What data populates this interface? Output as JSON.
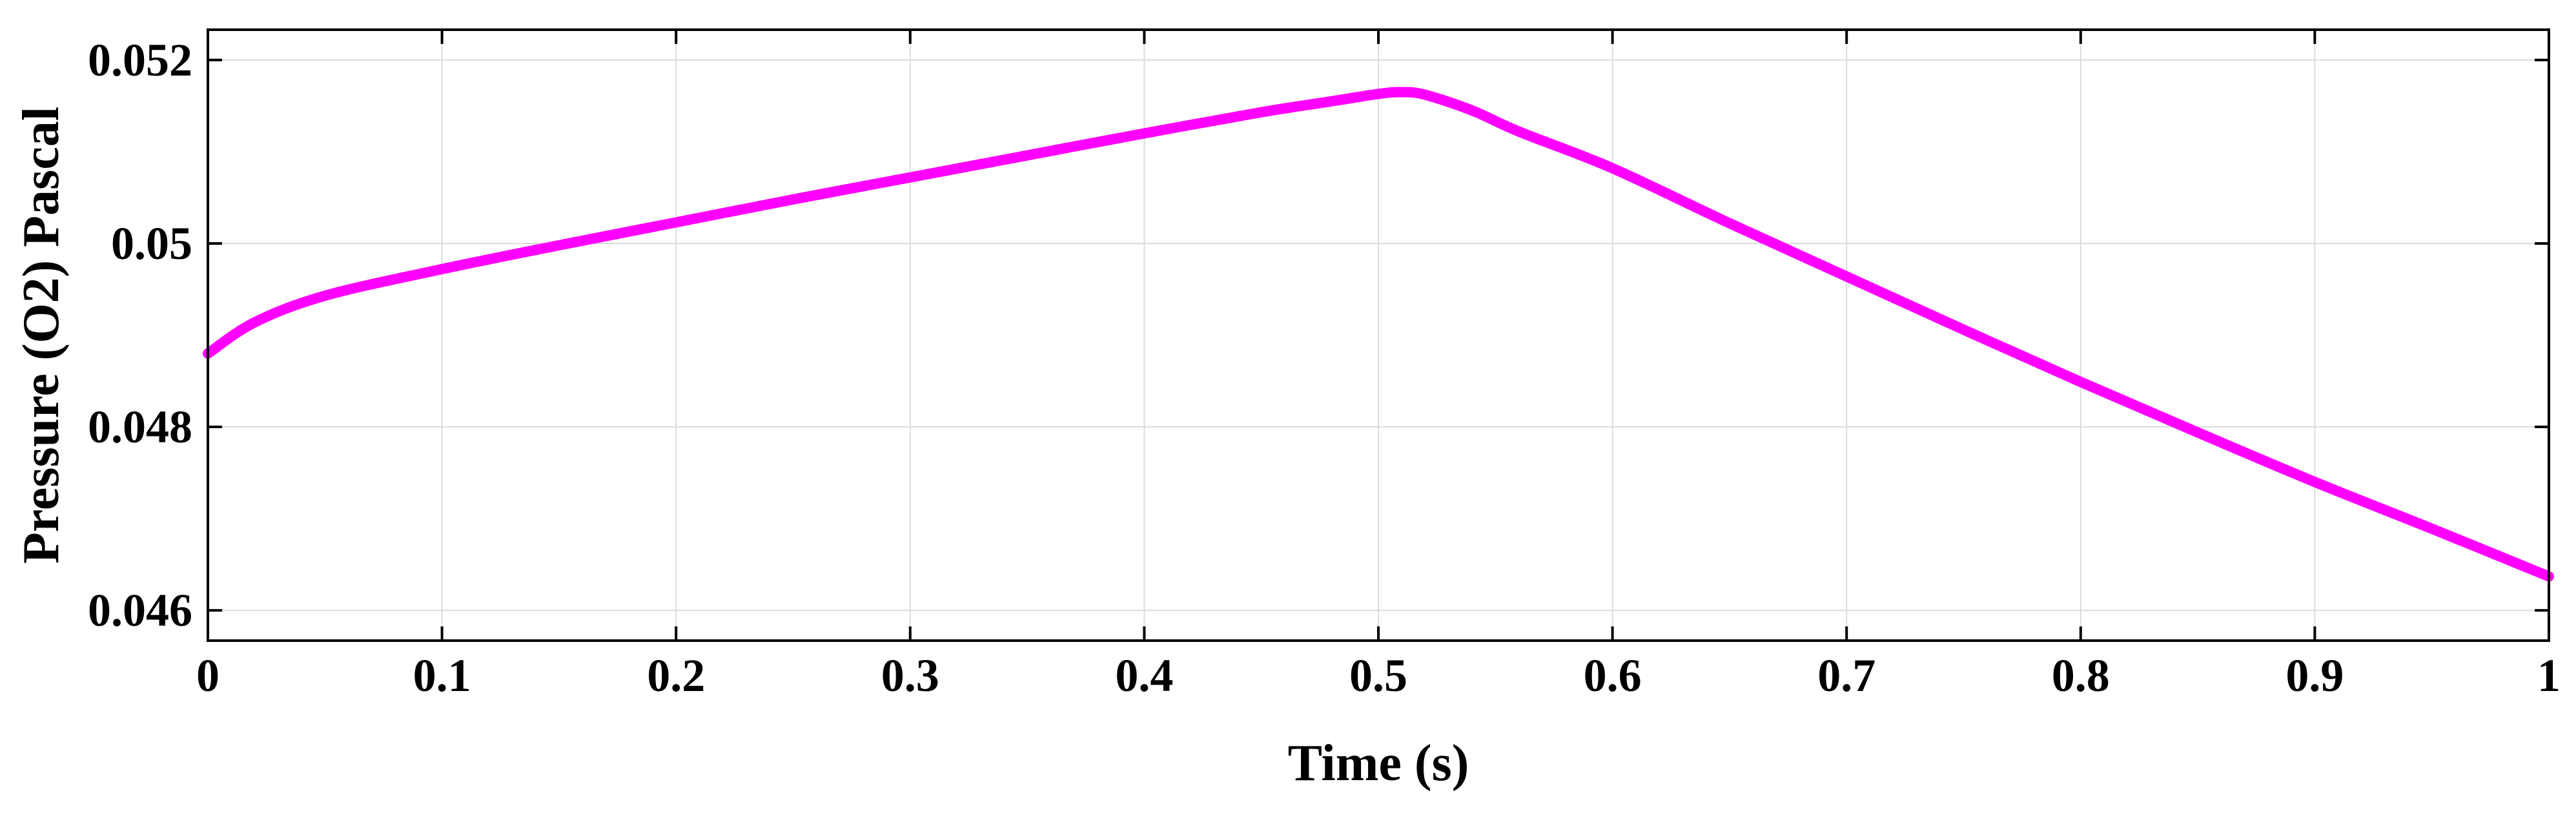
{
  "chart_data": {
    "type": "line",
    "title": "",
    "xlabel": "Time (s)",
    "ylabel": "Pressure (O2) Pascal",
    "xlim": [
      0,
      1
    ],
    "ylim": [
      0.04567,
      0.05233
    ],
    "x_ticks": [
      0,
      0.1,
      0.2,
      0.3,
      0.4,
      0.5,
      0.6,
      0.7,
      0.8,
      0.9,
      1
    ],
    "x_tick_labels": [
      "0",
      "0.1",
      "0.2",
      "0.3",
      "0.4",
      "0.5",
      "0.6",
      "0.7",
      "0.8",
      "0.9",
      "1"
    ],
    "y_ticks": [
      0.046,
      0.048,
      0.05,
      0.052
    ],
    "y_tick_labels": [
      "0.046",
      "0.048",
      "0.05",
      "0.052"
    ],
    "grid": true,
    "legend": "none",
    "series": [
      {
        "color": "#ff00ff",
        "x": [
          0,
          0.02,
          0.05,
          0.1,
          0.15,
          0.2,
          0.25,
          0.3,
          0.35,
          0.4,
          0.45,
          0.48,
          0.5,
          0.51,
          0.52,
          0.54,
          0.56,
          0.6,
          0.65,
          0.7,
          0.75,
          0.8,
          0.85,
          0.9,
          0.95,
          1.0
        ],
        "y": [
          0.0488,
          0.04914,
          0.04943,
          0.04972,
          0.04998,
          0.05023,
          0.05048,
          0.05072,
          0.05096,
          0.0512,
          0.05143,
          0.05155,
          0.05163,
          0.05165,
          0.05162,
          0.05145,
          0.05122,
          0.05082,
          0.05022,
          0.04964,
          0.04906,
          0.04849,
          0.04794,
          0.0474,
          0.04689,
          0.04637
        ]
      }
    ]
  }
}
